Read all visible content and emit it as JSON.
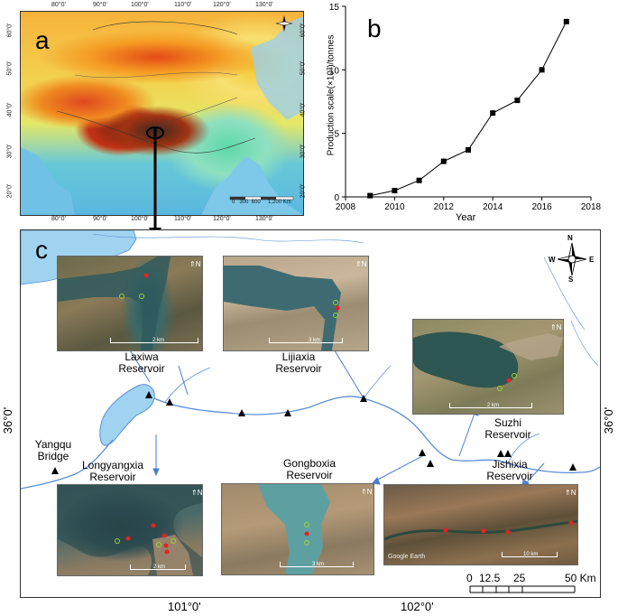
{
  "panel_a": {
    "letter": "a",
    "top_ticks": [
      "80°0'",
      "90°0'",
      "100°0'",
      "110°0'",
      "120°0'",
      "130°0'"
    ],
    "bottom_ticks": [
      "80°0'",
      "90°0'",
      "100°0'",
      "110°0'",
      "120°0'",
      "130°0'"
    ],
    "left_ticks": [
      "60°0'",
      "50°0'",
      "40°0'",
      "30°0'",
      "20°0'"
    ],
    "right_ticks": [
      "60°0'",
      "50°0'",
      "40°0'",
      "30°0'",
      "20°0'"
    ],
    "scale_text": "0   300  600     1,200 Km"
  },
  "panel_b": {
    "letter": "b"
  },
  "chart_data": {
    "type": "line",
    "x": [
      2009,
      2010,
      2011,
      2012,
      2013,
      2014,
      2015,
      2016,
      2017
    ],
    "y": [
      0.1,
      0.5,
      1.3,
      2.8,
      3.7,
      6.6,
      7.6,
      10.0,
      13.8
    ],
    "xlabel": "Year",
    "ylabel": "Production scale(×10³)/tonnes",
    "xlim": [
      2008,
      2018
    ],
    "ylim": [
      0,
      15
    ],
    "xticks": [
      "2008",
      "2010",
      "2012",
      "2014",
      "2016",
      "2018"
    ],
    "yticks": [
      "0",
      "5",
      "10",
      "15"
    ],
    "marker": "square",
    "grid": false
  },
  "panel_c": {
    "letter": "c",
    "lat_label_left": "36°0'",
    "lat_label_right": "36°0'",
    "lon_labels": [
      "101°0'",
      "102°0'"
    ],
    "compass": {
      "n": "N",
      "s": "S",
      "e": "E",
      "w": "W"
    },
    "scale_ticks": [
      "0",
      "12.5",
      "25",
      "50 Km"
    ],
    "reservoirs": [
      {
        "id": "laxiwa",
        "line1": "Laxiwa",
        "line2": "Reservoir",
        "inset_scale": "2 km"
      },
      {
        "id": "lijiaxia",
        "line1": "Lijiaxia",
        "line2": "Reservoir",
        "inset_scale": "3 km"
      },
      {
        "id": "suzhi",
        "line1": "Suzhi",
        "line2": "Reservoir",
        "inset_scale": "2 km"
      },
      {
        "id": "gongboxia",
        "line1": "Gongboxia",
        "line2": "Reservoir",
        "inset_scale": "3 km"
      },
      {
        "id": "jishixia",
        "line1": "Jishixia",
        "line2": "Reservoir",
        "inset_scale": "10 km"
      },
      {
        "id": "longyangxia",
        "line1": "Longyangxia",
        "line2": "Reservoir",
        "inset_scale": "2 km"
      }
    ],
    "yangqu": {
      "line1": "Yangqu",
      "line2": "Bridge"
    },
    "google_earth": "Google Earth"
  },
  "colors": {
    "water": "#9fd3f0",
    "river": "#5b8fd6",
    "arrow": "#4a7fd1",
    "farm": "#e32222",
    "candidate": "#9ad13a"
  }
}
